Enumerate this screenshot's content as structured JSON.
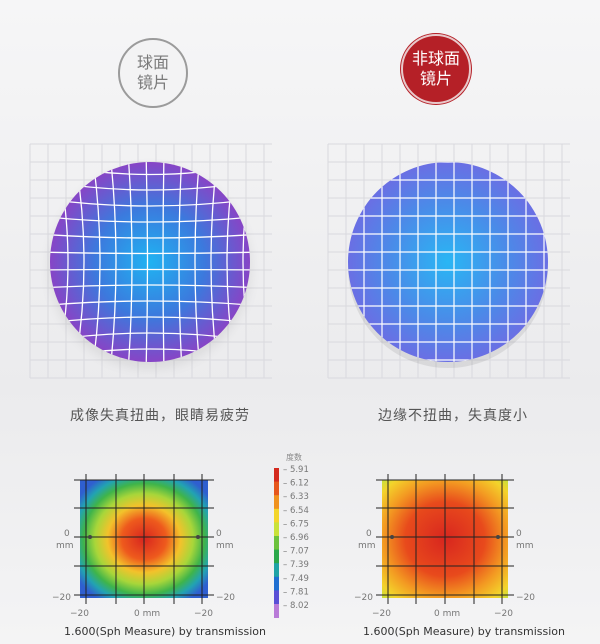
{
  "header": {
    "spherical_badge": [
      "球面",
      "镜片"
    ],
    "aspheric_badge": [
      "非球面",
      "镜片"
    ]
  },
  "comparison": {
    "left_caption": "成像失真扭曲，眼睛易疲劳",
    "right_caption": "边缘不扭曲，失真度小"
  },
  "power_maps": {
    "axis": {
      "x_ticks": [
        "−20",
        "0 mm",
        "−20"
      ],
      "y_ticks": [
        "0",
        "mm",
        "−20"
      ],
      "y_ticks_right": [
        "0",
        "mm",
        "−20"
      ]
    },
    "left_caption": "1.600(Sph Measure) by transmission",
    "right_caption": "1.600(Sph Measure) by transmission"
  },
  "legend": {
    "title": "度数",
    "values": [
      "5.91",
      "6.12",
      "6.33",
      "6.54",
      "6.75",
      "6.96",
      "7.07",
      "7.39",
      "7.49",
      "7.81",
      "8.02"
    ],
    "colors": [
      "#d42a1e",
      "#e6561c",
      "#f0921f",
      "#f3d52b",
      "#c9e23a",
      "#6cc23d",
      "#2aa84a",
      "#1fa3a6",
      "#1f6fd1",
      "#5a4fd6",
      "#b97bd8"
    ]
  }
}
